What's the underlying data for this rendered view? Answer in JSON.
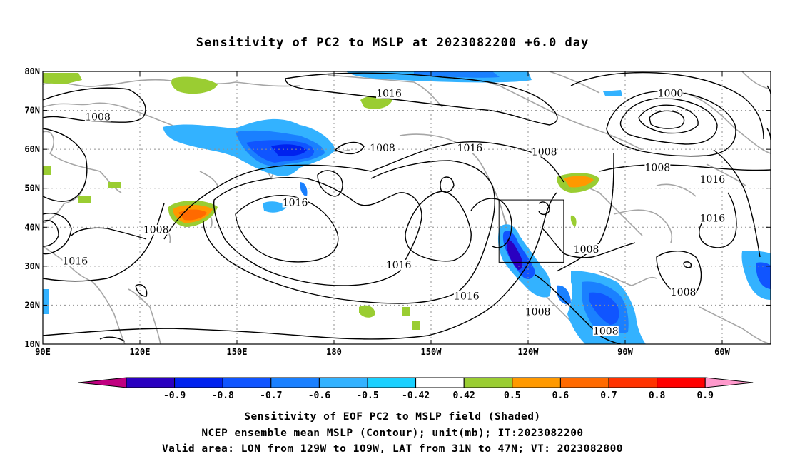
{
  "title": "Sensitivity of PC2 to MSLP at 2023082200 +6.0 day",
  "map": {
    "lat_labels": [
      "80N",
      "70N",
      "60N",
      "50N",
      "40N",
      "30N",
      "20N",
      "10N"
    ],
    "lat_values": [
      80,
      70,
      60,
      50,
      40,
      30,
      20,
      10
    ],
    "lon_labels": [
      "90E",
      "120E",
      "150E",
      "180",
      "150W",
      "120W",
      "90W",
      "60W"
    ],
    "lon_values": [
      90,
      120,
      150,
      180,
      210,
      240,
      270,
      300
    ],
    "lon_range": [
      90,
      315
    ],
    "lat_range": [
      10,
      80
    ],
    "valid_box": {
      "lon": [
        231,
        251
      ],
      "lat": [
        31,
        47
      ]
    },
    "contour_labels": [
      {
        "text": "1008",
        "lon": 107,
        "lat": 68
      },
      {
        "text": "1016",
        "lon": 197,
        "lat": 74
      },
      {
        "text": "1000",
        "lon": 284,
        "lat": 74
      },
      {
        "text": "1008",
        "lon": 195,
        "lat": 60
      },
      {
        "text": "1016",
        "lon": 222,
        "lat": 60
      },
      {
        "text": "1008",
        "lon": 245,
        "lat": 59
      },
      {
        "text": "1008",
        "lon": 280,
        "lat": 55
      },
      {
        "text": "1016",
        "lon": 297,
        "lat": 52
      },
      {
        "text": "1016",
        "lon": 168,
        "lat": 46
      },
      {
        "text": "1016",
        "lon": 297,
        "lat": 42
      },
      {
        "text": "1008",
        "lon": 125,
        "lat": 39
      },
      {
        "text": "1008",
        "lon": 258,
        "lat": 34
      },
      {
        "text": "1016",
        "lon": 100,
        "lat": 31
      },
      {
        "text": "1016",
        "lon": 200,
        "lat": 30
      },
      {
        "text": "1016",
        "lon": 221,
        "lat": 22
      },
      {
        "text": "1008",
        "lon": 288,
        "lat": 23
      },
      {
        "text": "1008",
        "lon": 243,
        "lat": 18
      },
      {
        "text": "1008",
        "lon": 264,
        "lat": 13
      }
    ]
  },
  "colorbar": {
    "labels": [
      "-0.9",
      "-0.8",
      "-0.7",
      "-0.6",
      "-0.5",
      "-0.42",
      "0.42",
      "0.5",
      "0.6",
      "0.7",
      "0.8",
      "0.9"
    ],
    "colors": [
      "#2a00c0",
      "#0022ee",
      "#1055ff",
      "#1a80ff",
      "#33b2ff",
      "#1ad0ff",
      "#ffffff",
      "#9acd32",
      "#ff9900",
      "#ff6a00",
      "#ff3300",
      "#ff0000"
    ],
    "low_end_color": "#c00080",
    "high_end_color": "#ff99cc"
  },
  "captions": {
    "line1": "Sensitivity of EOF PC2 to MSLP field (Shaded)",
    "line2": "NCEP ensemble mean MSLP (Contour); unit(mb); IT:2023082200",
    "line3": "Valid area: LON from 129W to 109W, LAT from 31N to 47N; VT: 2023082800"
  }
}
